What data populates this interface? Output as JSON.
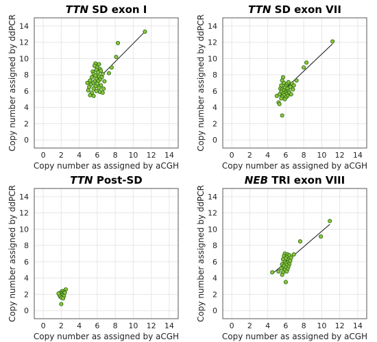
{
  "chart_data": [
    {
      "type": "scatter",
      "title_gene": "TTN",
      "title_rest": " SD exon I",
      "xlabel": "Copy number as assigned by aCGH",
      "ylabel": "Copy number assigned by ddPCR",
      "xlim": [
        -1,
        15
      ],
      "ylim": [
        -1,
        15
      ],
      "ticks": [
        0,
        2,
        4,
        6,
        8,
        10,
        12,
        14
      ],
      "grid": true,
      "fit_line": {
        "x": [
          5.3,
          11.3
        ],
        "y": [
          6.6,
          13.3
        ]
      },
      "points": [
        [
          5.8,
          9.4
        ],
        [
          6.2,
          9.3
        ],
        [
          5.7,
          9.1
        ],
        [
          6.0,
          8.9
        ],
        [
          6.3,
          8.7
        ],
        [
          5.9,
          8.6
        ],
        [
          6.4,
          8.5
        ],
        [
          5.5,
          8.4
        ],
        [
          6.1,
          8.3
        ],
        [
          5.6,
          8.1
        ],
        [
          6.6,
          8.1
        ],
        [
          7.3,
          8.2
        ],
        [
          5.8,
          7.9
        ],
        [
          6.2,
          7.8
        ],
        [
          5.4,
          7.7
        ],
        [
          6.5,
          7.7
        ],
        [
          5.9,
          7.5
        ],
        [
          6.3,
          7.4
        ],
        [
          5.2,
          7.3
        ],
        [
          5.7,
          7.2
        ],
        [
          6.1,
          7.2
        ],
        [
          6.8,
          7.2
        ],
        [
          5.5,
          7.0
        ],
        [
          4.9,
          7.0
        ],
        [
          6.0,
          6.9
        ],
        [
          5.3,
          6.8
        ],
        [
          6.4,
          6.7
        ],
        [
          5.8,
          6.6
        ],
        [
          5.1,
          6.5
        ],
        [
          6.2,
          6.4
        ],
        [
          5.6,
          6.3
        ],
        [
          6.7,
          6.3
        ],
        [
          5.0,
          6.1
        ],
        [
          5.9,
          6.0
        ],
        [
          6.3,
          5.9
        ],
        [
          5.4,
          5.8
        ],
        [
          6.6,
          5.8
        ],
        [
          5.2,
          5.5
        ],
        [
          5.6,
          5.4
        ],
        [
          8.1,
          10.2
        ],
        [
          8.3,
          11.9
        ],
        [
          11.3,
          13.3
        ],
        [
          7.6,
          8.9
        ]
      ]
    },
    {
      "type": "scatter",
      "title_gene": "TTN",
      "title_rest": " SD exon VII",
      "xlabel": "Copy number as assigned by aCGH",
      "ylabel": "Copy number assigned by ddPCR",
      "xlim": [
        -1,
        15
      ],
      "ylim": [
        -1,
        15
      ],
      "ticks": [
        0,
        2,
        4,
        6,
        8,
        10,
        12,
        14
      ],
      "grid": true,
      "fit_line": {
        "x": [
          5.0,
          11.2
        ],
        "y": [
          5.3,
          11.8
        ]
      },
      "points": [
        [
          5.7,
          7.7
        ],
        [
          5.6,
          7.3
        ],
        [
          5.8,
          7.0
        ],
        [
          6.3,
          7.1
        ],
        [
          6.7,
          6.9
        ],
        [
          6.1,
          6.8
        ],
        [
          5.5,
          6.7
        ],
        [
          6.0,
          6.6
        ],
        [
          6.5,
          6.5
        ],
        [
          5.9,
          6.4
        ],
        [
          5.4,
          6.3
        ],
        [
          6.2,
          6.3
        ],
        [
          5.6,
          6.2
        ],
        [
          6.8,
          6.2
        ],
        [
          5.8,
          6.1
        ],
        [
          6.3,
          6.0
        ],
        [
          5.5,
          5.9
        ],
        [
          6.0,
          5.9
        ],
        [
          5.9,
          5.8
        ],
        [
          6.4,
          5.8
        ],
        [
          5.7,
          5.7
        ],
        [
          6.1,
          5.6
        ],
        [
          5.3,
          5.6
        ],
        [
          6.6,
          5.6
        ],
        [
          5.8,
          5.5
        ],
        [
          6.2,
          5.4
        ],
        [
          5.6,
          5.3
        ],
        [
          6.0,
          5.2
        ],
        [
          5.5,
          5.1
        ],
        [
          5.9,
          5.0
        ],
        [
          5.0,
          5.4
        ],
        [
          5.2,
          4.6
        ],
        [
          5.3,
          4.4
        ],
        [
          5.6,
          3.0
        ],
        [
          6.9,
          6.7
        ],
        [
          7.2,
          7.3
        ],
        [
          8.0,
          8.9
        ],
        [
          8.3,
          9.5
        ],
        [
          11.2,
          12.1
        ]
      ]
    },
    {
      "type": "scatter",
      "title_gene": "TTN",
      "title_rest": " Post-SD",
      "xlabel": "Copy number as assigned by aCGH",
      "ylabel": "Copy number assigned by ddPCR",
      "xlim": [
        -1,
        15
      ],
      "ylim": [
        -1,
        15
      ],
      "ticks": [
        0,
        2,
        4,
        6,
        8,
        10,
        12,
        14
      ],
      "grid": true,
      "fit_line": {
        "x": [
          1.8,
          2.4
        ],
        "y": [
          1.7,
          2.4
        ]
      },
      "points": [
        [
          2.5,
          2.6
        ],
        [
          2.1,
          2.4
        ],
        [
          2.3,
          2.3
        ],
        [
          1.9,
          2.2
        ],
        [
          2.0,
          2.1
        ],
        [
          2.2,
          2.0
        ],
        [
          1.8,
          2.0
        ],
        [
          2.1,
          1.9
        ],
        [
          2.3,
          1.8
        ],
        [
          1.9,
          1.7
        ],
        [
          2.0,
          1.6
        ],
        [
          2.2,
          1.5
        ],
        [
          1.8,
          1.9
        ],
        [
          2.4,
          2.2
        ],
        [
          1.7,
          2.1
        ],
        [
          2.0,
          0.8
        ]
      ]
    },
    {
      "type": "scatter",
      "title_gene": "NEB",
      "title_rest": " TRI exon VIII",
      "xlabel": "Copy number as assigned by aCGH",
      "ylabel": "Copy number assigned by ddPCR",
      "xlim": [
        -1,
        15
      ],
      "ylim": [
        -1,
        15
      ],
      "ticks": [
        0,
        2,
        4,
        6,
        8,
        10,
        12,
        14
      ],
      "grid": true,
      "fit_line": {
        "x": [
          4.6,
          10.9
        ],
        "y": [
          4.6,
          10.6
        ]
      },
      "points": [
        [
          5.9,
          7.0
        ],
        [
          6.2,
          6.9
        ],
        [
          6.4,
          6.8
        ],
        [
          5.8,
          6.7
        ],
        [
          6.1,
          6.6
        ],
        [
          6.6,
          6.5
        ],
        [
          6.0,
          6.4
        ],
        [
          5.7,
          6.3
        ],
        [
          6.3,
          6.2
        ],
        [
          6.5,
          6.1
        ],
        [
          5.9,
          6.0
        ],
        [
          6.2,
          5.9
        ],
        [
          6.0,
          5.8
        ],
        [
          5.6,
          5.7
        ],
        [
          6.4,
          5.7
        ],
        [
          6.1,
          5.6
        ],
        [
          5.8,
          5.5
        ],
        [
          6.3,
          5.4
        ],
        [
          6.0,
          5.3
        ],
        [
          5.5,
          5.2
        ],
        [
          6.2,
          5.1
        ],
        [
          5.9,
          5.0
        ],
        [
          6.1,
          4.8
        ],
        [
          5.7,
          4.7
        ],
        [
          5.2,
          4.8
        ],
        [
          4.5,
          4.7
        ],
        [
          5.6,
          4.4
        ],
        [
          6.0,
          3.5
        ],
        [
          6.9,
          6.9
        ],
        [
          7.6,
          8.5
        ],
        [
          9.9,
          9.1
        ],
        [
          10.9,
          11.0
        ]
      ]
    }
  ]
}
